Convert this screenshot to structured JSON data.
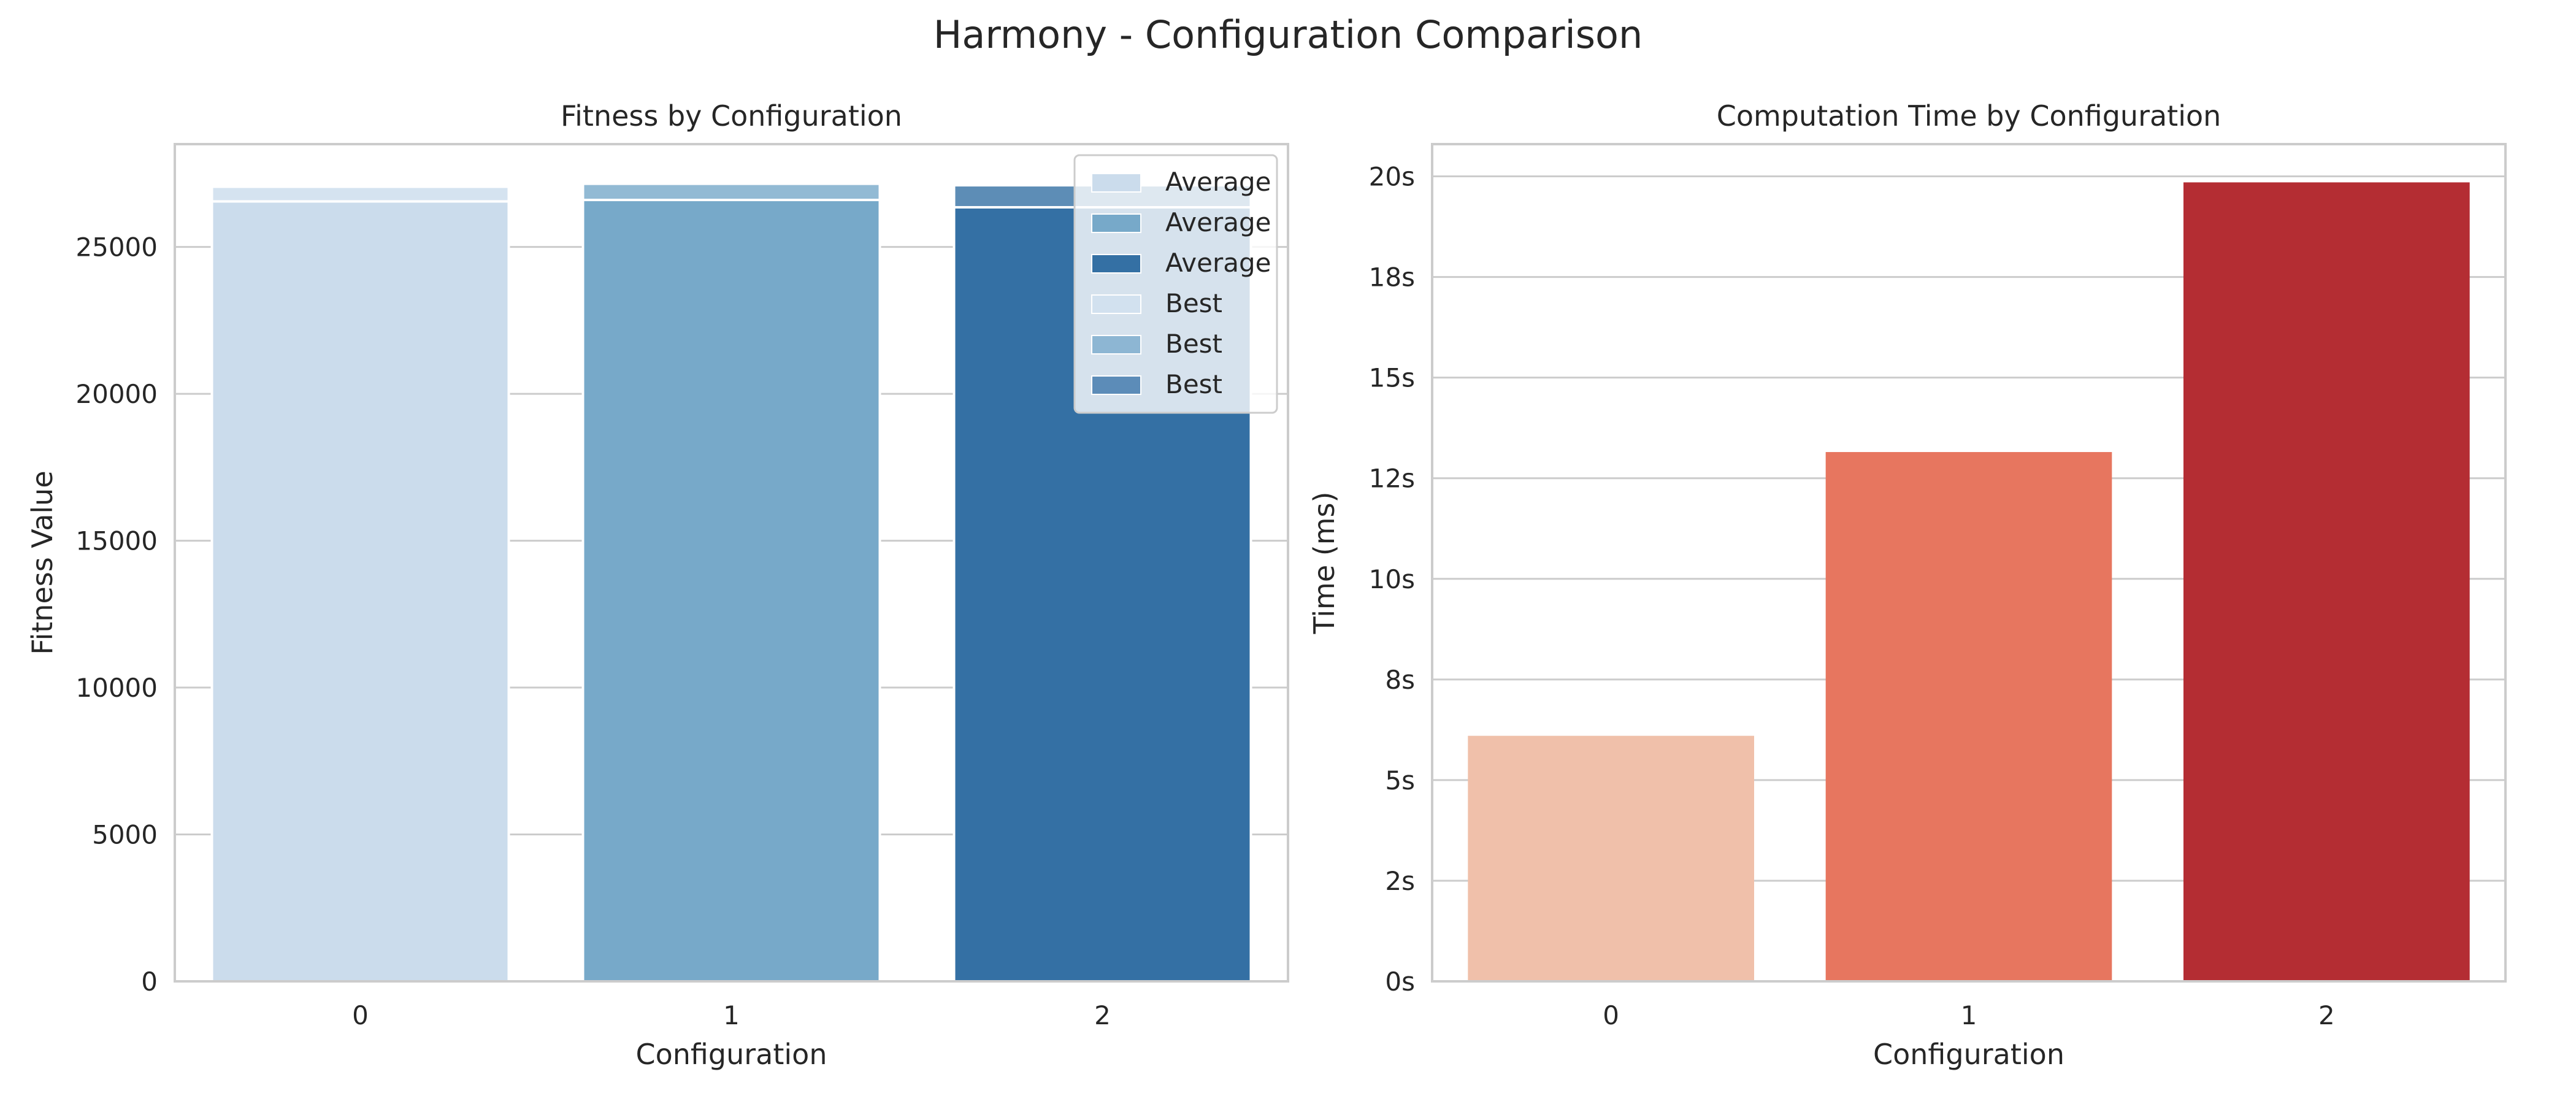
{
  "figure": {
    "suptitle": "Harmony - Configuration Comparison"
  },
  "chart_data": [
    {
      "type": "bar",
      "title": "Fitness by Configuration",
      "xlabel": "Configuration",
      "ylabel": "Fitness Value",
      "categories": [
        "0",
        "1",
        "2"
      ],
      "ylim": [
        0,
        28500
      ],
      "yticks": [
        0,
        5000,
        10000,
        15000,
        20000,
        25000
      ],
      "ytick_labels": [
        "0",
        "5000",
        "10000",
        "15000",
        "20000",
        "25000"
      ],
      "grid": true,
      "legend": "top-right",
      "series": [
        {
          "name": "Average",
          "values": [
            26550,
            26600,
            26350
          ],
          "colors": [
            "#cbdcec",
            "#77a9c9",
            "#3470a4"
          ]
        },
        {
          "name": "Best",
          "values": [
            27050,
            27150,
            27100
          ],
          "colors": [
            "#cbdcec",
            "#77a9c9",
            "#3470a4"
          ],
          "alpha": 0.8
        }
      ],
      "legend_entries": [
        {
          "label": "Average",
          "color": "#cbdcec"
        },
        {
          "label": "Average",
          "color": "#77a9c9"
        },
        {
          "label": "Average",
          "color": "#3470a4"
        },
        {
          "label": "Best",
          "color": "#d2e1ef"
        },
        {
          "label": "Best",
          "color": "#8db6d3"
        },
        {
          "label": "Best",
          "color": "#5c8cb8"
        }
      ]
    },
    {
      "type": "bar",
      "title": "Computation Time by Configuration",
      "xlabel": "Configuration",
      "ylabel": "Time (ms)",
      "categories": [
        "0",
        "1",
        "2"
      ],
      "ylim": [
        0,
        20800
      ],
      "yticks": [
        0,
        2500,
        5000,
        7500,
        10000,
        12500,
        15000,
        17500,
        20000
      ],
      "ytick_labels": [
        "0s",
        "2s",
        "5s",
        "8s",
        "10s",
        "12s",
        "15s",
        "18s",
        "20s"
      ],
      "grid": true,
      "series": [
        {
          "name": "",
          "values": [
            6100,
            13150,
            19850
          ],
          "colors": [
            "#f0c0aa",
            "#e7765f",
            "#b42d33"
          ]
        }
      ]
    }
  ]
}
